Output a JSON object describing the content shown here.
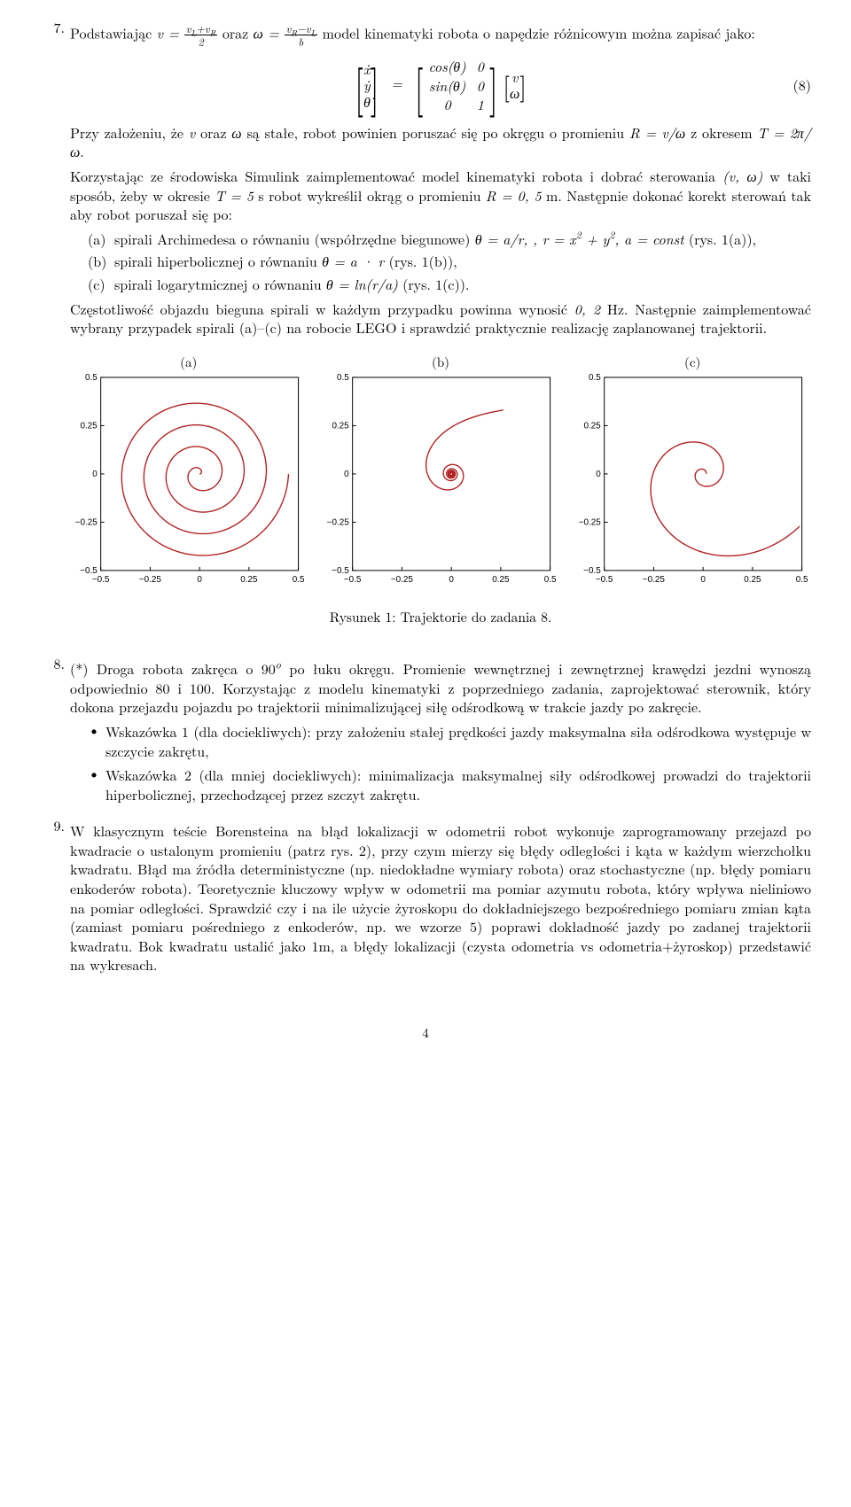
{
  "item7": {
    "num": "7.",
    "intro_a": "Podstawiając ",
    "intro_b": " oraz ",
    "intro_c": " model kinematyki robota o napędzie różnicowym można zapisać jako:",
    "eq_num": "(8)",
    "p2_a": "Przy założeniu, że ",
    "p2_b": " oraz ",
    "p2_c": " są stałe, robot powinien poruszać się po okręgu o promieniu ",
    "p2_d": " z okresem ",
    "p2_e": ".",
    "p3_a": "Korzystając ze środowiska Simulink zaimplementować model kinematyki robota i dobrać sterowania ",
    "p3_b": " w taki sposób, żeby w okresie ",
    "p3_c": " s robot wykreślił okrąg o promieniu ",
    "p3_d": " m. Następnie dokonać korekt sterowań tak aby robot poruszał się po:",
    "sub_a_num": "(a)",
    "sub_a_text_1": "spirali Archimedesa o równaniu (współrzędne biegunowe) ",
    "sub_a_text_2": " (rys. 1(a)),",
    "sub_b_num": "(b)",
    "sub_b_text_1": "spirali hiperbolicznej o równaniu ",
    "sub_b_text_2": " (rys. 1(b)),",
    "sub_c_num": "(c)",
    "sub_c_text_1": "spirali logarytmicznej o równaniu ",
    "sub_c_text_2": " (rys. 1(c)).",
    "p4_a": "Częstotliwość objazdu bieguna spirali w każdym przypadku powinna wynosić ",
    "p4_b": " Hz. Następnie zaimplementować wybrany przypadek spirali (a)–(c) na robocie LEGO i sprawdzić praktycznie realizację zaplanowanej trajektorii."
  },
  "fig": {
    "title_a": "(a)",
    "title_b": "(b)",
    "title_c": "(c)",
    "caption": "Rysunek 1: Trajektorie do zadania 8.",
    "axis": {
      "min": -0.5,
      "max": 0.5,
      "ticks": [
        "−0.5",
        "−0.25",
        "0",
        "0.25",
        "0.5"
      ],
      "tick_vals": [
        -0.5,
        -0.25,
        0,
        0.25,
        0.5
      ]
    },
    "line_color": "#b22222",
    "line_width": 1.4,
    "box_color": "#000000",
    "tick_fontsize": 10
  },
  "item8": {
    "num": "8.",
    "text_a": "(*) Droga robota zakręca o 90",
    "text_b": " po łuku okręgu. Promienie wewnętrznej i zewnętrznej krawędzi jezdni wynoszą odpowiednio 80 i 100. Korzystając z modelu kinematyki z poprzedniego zadania, zaprojektować sterownik, który dokona przejazdu pojazdu po trajektorii minimalizującej siłę odśrodkową w trakcie jazdy po zakręcie.",
    "hint1": "Wskazówka 1 (dla dociekliwych): przy założeniu stałej prędkości jazdy maksymalna siła odśrodkowa występuje w szczycie zakrętu,",
    "hint2": "Wskazówka 2 (dla mniej dociekliwych): minimalizacja maksymalnej siły odśrodkowej prowadzi do trajektorii hiperbolicznej, przechodzącej przez szczyt zakrętu."
  },
  "item9": {
    "num": "9.",
    "text": "W klasycznym teście Borensteina na błąd lokalizacji w odometrii robot wykonuje zaprogramowany przejazd po kwadracie o ustalonym promieniu (patrz rys. 2), przy czym mierzy się błędy odległości i kąta w każdym wierzchołku kwadratu. Błąd ma źródła deterministyczne (np. niedokładne wymiary robota) oraz stochastyczne (np. błędy pomiaru enkoderów robota). Teoretycznie kluczowy wpływ w odometrii ma pomiar azymutu robota, który wpływa nieliniowo na pomiar odległości. Sprawdzić czy i na ile użycie żyroskopu do dokładniejszego bezpośredniego pomiaru zmian kąta (zamiast pomiaru pośredniego z enkoderów, np. we wzorze 5) poprawi dokładność jazdy po zadanej trajektorii kwadratu. Bok kwadratu ustalić jako 1m, a błędy lokalizacji (czysta odometria vs odometria+żyroskop) przedstawić na wykresach."
  },
  "page_number": "4"
}
